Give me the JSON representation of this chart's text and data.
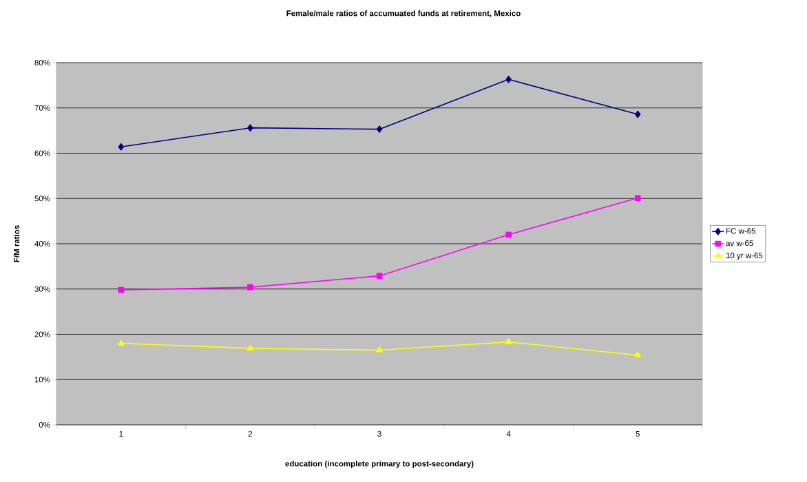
{
  "chart_data": {
    "type": "line",
    "title": "Female/male ratios of accumuated funds at retirement, Mexico",
    "xlabel": "education (incomplete primary to post-secondary)",
    "ylabel": "F/M ratios",
    "categories": [
      "1",
      "2",
      "3",
      "4",
      "5"
    ],
    "series": [
      {
        "name": "FC w-65",
        "color": "#000080",
        "marker": "diamond",
        "values": [
          61.4,
          65.6,
          65.3,
          76.3,
          68.6
        ]
      },
      {
        "name": "av w-65",
        "color": "#ff00ff",
        "marker": "square",
        "values": [
          29.8,
          30.4,
          32.9,
          42.0,
          50.1
        ]
      },
      {
        "name": "10 yr w-65",
        "color": "#ffff00",
        "marker": "triangle",
        "values": [
          18.0,
          16.9,
          16.5,
          18.3,
          15.4
        ]
      }
    ],
    "ylim": [
      0,
      80
    ],
    "yticks": [
      {
        "value": 0,
        "label": "0%"
      },
      {
        "value": 10,
        "label": "10%"
      },
      {
        "value": 20,
        "label": "20%"
      },
      {
        "value": 30,
        "label": "30%"
      },
      {
        "value": 40,
        "label": "40%"
      },
      {
        "value": 50,
        "label": "50%"
      },
      {
        "value": 60,
        "label": "60%"
      },
      {
        "value": 70,
        "label": "70%"
      },
      {
        "value": 80,
        "label": "80%"
      }
    ],
    "grid": "y",
    "legend": "right",
    "line_style": "solid"
  }
}
